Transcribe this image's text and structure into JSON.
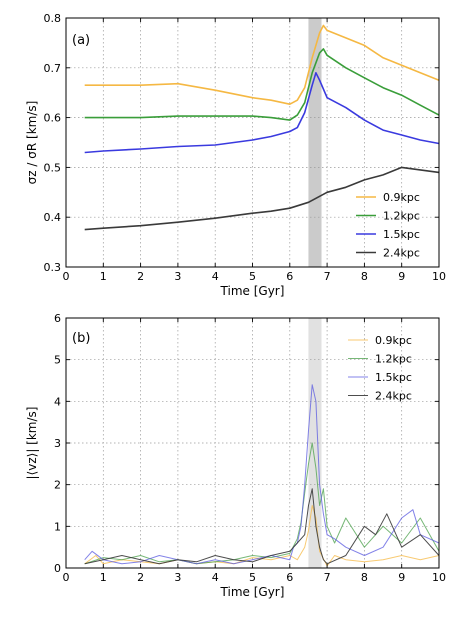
{
  "chart_data": [
    {
      "type": "line",
      "panel_label": "(a)",
      "xlabel": "Time [Gyr]",
      "ylabel": "σz / σR [km/s]",
      "xlim": [
        0,
        10
      ],
      "ylim": [
        0.3,
        0.8
      ],
      "xticks": [
        "0",
        "1",
        "2",
        "3",
        "4",
        "5",
        "6",
        "7",
        "8",
        "9",
        "10"
      ],
      "yticks": [
        "0.3",
        "0.4",
        "0.5",
        "0.6",
        "0.7",
        "0.8"
      ],
      "grid": true,
      "shaded_band": {
        "x0": 6.5,
        "x1": 6.85,
        "color": "#a0a0a0",
        "opacity": 0.55
      },
      "legend_position": "bottom-right",
      "series": [
        {
          "name": "0.9kpc",
          "color": "#f5b843",
          "width": 1.6,
          "opacity": 1,
          "x": [
            0.5,
            1.0,
            2.0,
            3.0,
            4.0,
            5.0,
            5.5,
            6.0,
            6.2,
            6.4,
            6.6,
            6.8,
            6.9,
            7.0,
            7.5,
            8.0,
            8.5,
            9.0,
            9.5,
            10.0
          ],
          "y": [
            0.665,
            0.665,
            0.665,
            0.668,
            0.655,
            0.64,
            0.635,
            0.627,
            0.635,
            0.66,
            0.72,
            0.77,
            0.785,
            0.775,
            0.76,
            0.745,
            0.72,
            0.705,
            0.69,
            0.675
          ]
        },
        {
          "name": "1.2kpc",
          "color": "#3a9e3a",
          "width": 1.6,
          "opacity": 1,
          "x": [
            0.5,
            1.0,
            2.0,
            3.0,
            4.0,
            5.0,
            5.5,
            6.0,
            6.2,
            6.4,
            6.6,
            6.8,
            6.9,
            7.0,
            7.5,
            8.0,
            8.5,
            9.0,
            9.5,
            10.0
          ],
          "y": [
            0.6,
            0.6,
            0.6,
            0.603,
            0.603,
            0.603,
            0.6,
            0.595,
            0.605,
            0.63,
            0.69,
            0.73,
            0.738,
            0.725,
            0.7,
            0.68,
            0.66,
            0.645,
            0.625,
            0.605
          ]
        },
        {
          "name": "1.5kpc",
          "color": "#3a3adf",
          "width": 1.6,
          "opacity": 1,
          "x": [
            0.5,
            1.0,
            2.0,
            3.0,
            4.0,
            5.0,
            5.5,
            6.0,
            6.2,
            6.4,
            6.6,
            6.7,
            6.8,
            7.0,
            7.5,
            8.0,
            8.5,
            9.0,
            9.5,
            10.0
          ],
          "y": [
            0.53,
            0.533,
            0.537,
            0.542,
            0.545,
            0.555,
            0.562,
            0.572,
            0.58,
            0.61,
            0.665,
            0.69,
            0.675,
            0.64,
            0.62,
            0.595,
            0.575,
            0.565,
            0.555,
            0.548
          ]
        },
        {
          "name": "2.4kpc",
          "color": "#3a3a3a",
          "width": 1.6,
          "opacity": 1,
          "x": [
            0.5,
            1.0,
            2.0,
            3.0,
            4.0,
            5.0,
            5.5,
            6.0,
            6.5,
            7.0,
            7.5,
            8.0,
            8.5,
            9.0,
            9.5,
            10.0
          ],
          "y": [
            0.375,
            0.378,
            0.383,
            0.39,
            0.398,
            0.408,
            0.412,
            0.418,
            0.43,
            0.45,
            0.46,
            0.475,
            0.485,
            0.5,
            0.495,
            0.49
          ]
        }
      ]
    },
    {
      "type": "line",
      "panel_label": "(b)",
      "xlabel": "Time [Gyr]",
      "ylabel": "|⟨vz⟩| [km/s]",
      "xlim": [
        0,
        10
      ],
      "ylim": [
        0,
        6
      ],
      "xticks": [
        "0",
        "1",
        "2",
        "3",
        "4",
        "5",
        "6",
        "7",
        "8",
        "9",
        "10"
      ],
      "yticks": [
        "0",
        "1",
        "2",
        "3",
        "4",
        "5",
        "6"
      ],
      "grid": true,
      "shaded_band": {
        "x0": 6.5,
        "x1": 6.85,
        "color": "#c8c8c8",
        "opacity": 0.55
      },
      "legend_position": "top-right",
      "series": [
        {
          "name": "0.9kpc",
          "color": "#f5b843",
          "width": 1.0,
          "opacity": 0.75,
          "x": [
            0.5,
            0.8,
            1.0,
            1.5,
            2.0,
            2.5,
            3.0,
            3.5,
            4.0,
            4.5,
            5.0,
            5.5,
            6.0,
            6.2,
            6.4,
            6.5,
            6.6,
            6.7,
            6.8,
            7.0,
            7.2,
            7.5,
            8.0,
            8.5,
            9.0,
            9.5,
            10.0
          ],
          "y": [
            0.1,
            0.3,
            0.1,
            0.2,
            0.15,
            0.1,
            0.2,
            0.1,
            0.15,
            0.1,
            0.25,
            0.2,
            0.3,
            0.2,
            0.5,
            0.9,
            1.5,
            1.2,
            0.4,
            0.05,
            0.3,
            0.2,
            0.15,
            0.2,
            0.3,
            0.2,
            0.3
          ]
        },
        {
          "name": "1.2kpc",
          "color": "#4aa04a",
          "width": 1.0,
          "opacity": 0.75,
          "x": [
            0.5,
            1.0,
            1.5,
            2.0,
            2.5,
            3.0,
            3.5,
            4.0,
            4.5,
            5.0,
            5.5,
            6.0,
            6.2,
            6.3,
            6.4,
            6.5,
            6.6,
            6.7,
            6.8,
            6.9,
            7.0,
            7.2,
            7.5,
            8.0,
            8.5,
            9.0,
            9.5,
            10.0
          ],
          "y": [
            0.1,
            0.25,
            0.2,
            0.3,
            0.15,
            0.2,
            0.1,
            0.15,
            0.2,
            0.3,
            0.25,
            0.35,
            0.7,
            1.1,
            1.8,
            2.5,
            3.0,
            2.4,
            1.5,
            1.9,
            1.0,
            0.6,
            1.2,
            0.5,
            1.0,
            0.6,
            1.2,
            0.4
          ]
        },
        {
          "name": "1.5kpc",
          "color": "#5a5ae0",
          "width": 1.0,
          "opacity": 0.75,
          "x": [
            0.5,
            0.7,
            1.0,
            1.5,
            2.0,
            2.5,
            3.0,
            3.5,
            4.0,
            4.5,
            5.0,
            5.5,
            6.0,
            6.1,
            6.2,
            6.3,
            6.4,
            6.5,
            6.6,
            6.7,
            6.8,
            6.9,
            7.0,
            7.2,
            7.5,
            8.0,
            8.5,
            9.0,
            9.3,
            9.5,
            10.0
          ],
          "y": [
            0.2,
            0.4,
            0.2,
            0.1,
            0.15,
            0.3,
            0.2,
            0.1,
            0.2,
            0.1,
            0.2,
            0.3,
            0.2,
            0.5,
            0.6,
            1.0,
            2.0,
            3.3,
            4.4,
            4.0,
            2.0,
            1.3,
            0.8,
            0.7,
            0.5,
            0.3,
            0.5,
            1.2,
            1.4,
            0.8,
            0.6
          ]
        },
        {
          "name": "2.4kpc",
          "color": "#3a3a3a",
          "width": 1.0,
          "opacity": 0.9,
          "x": [
            0.5,
            1.0,
            1.5,
            2.0,
            2.5,
            3.0,
            3.5,
            4.0,
            4.5,
            5.0,
            5.5,
            6.0,
            6.2,
            6.4,
            6.5,
            6.6,
            6.7,
            6.8,
            6.9,
            7.0,
            7.5,
            8.0,
            8.3,
            8.6,
            9.0,
            9.5,
            10.0
          ],
          "y": [
            0.1,
            0.2,
            0.3,
            0.2,
            0.1,
            0.2,
            0.15,
            0.3,
            0.2,
            0.15,
            0.3,
            0.4,
            0.6,
            0.8,
            1.5,
            1.9,
            1.0,
            0.5,
            0.2,
            0.1,
            0.3,
            1.0,
            0.8,
            1.3,
            0.5,
            0.8,
            0.3
          ]
        }
      ]
    }
  ]
}
